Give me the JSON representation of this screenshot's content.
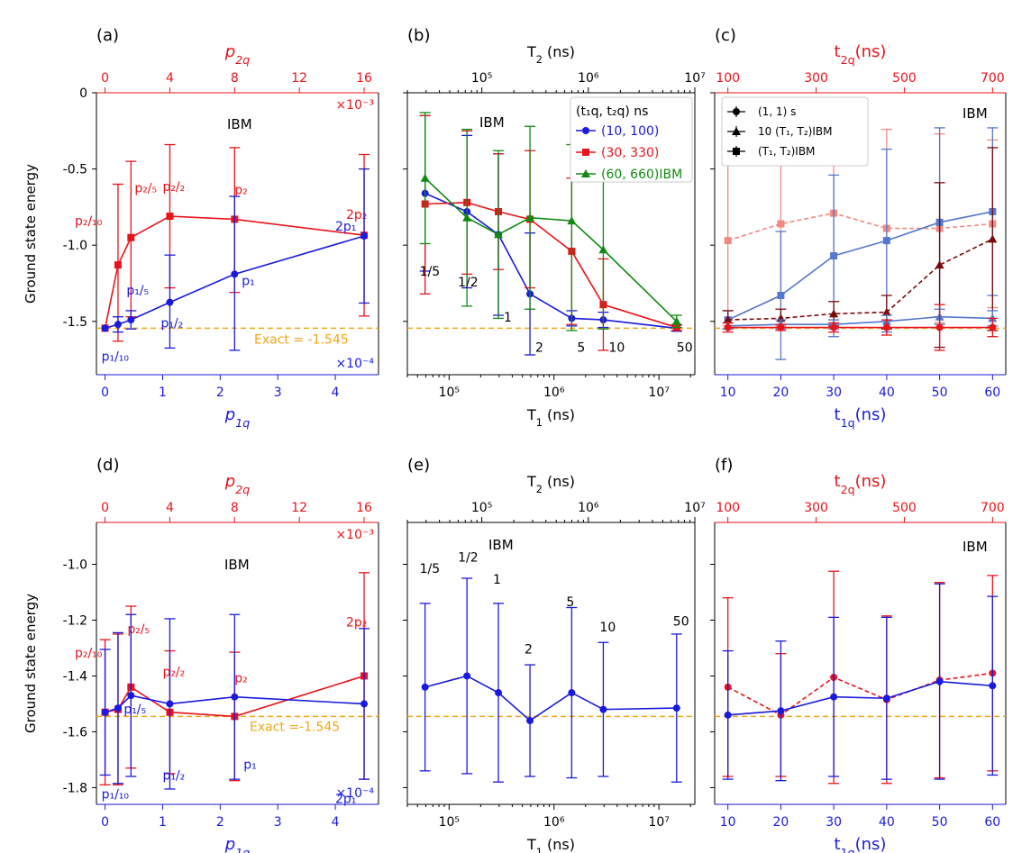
{
  "colors": {
    "blue": "#1a1adf",
    "red": "#e8141b",
    "green": "#118a11",
    "orange": "#f0a616",
    "darkred": "#7a0b0b",
    "salmon": "#f08a80",
    "steelblue": "#5577cc",
    "black": "#000000"
  },
  "chart_data": [
    {
      "panel": "(a)",
      "type": "line",
      "ylabel": "Ground state energy",
      "xlabel": "p1q",
      "xlabel_top": "p2q",
      "xlim": [
        -0.15,
        4.75
      ],
      "ylim": [
        -1.85,
        0.0
      ],
      "xticks": [
        0,
        1,
        2,
        3,
        4
      ],
      "xticks_top": [
        "0",
        "4",
        "8",
        "12",
        "16"
      ],
      "yticks": [
        0,
        -0.5,
        -1.0,
        -1.5
      ],
      "ytick_labels": [
        "0",
        "-0.5",
        "-1.0",
        "-1.5"
      ],
      "scale_top": "×10⁻³",
      "scale_bottom": "×10⁻⁴",
      "annotation": "IBM",
      "exact_label": "Exact = -1.545",
      "exact_value": -1.545,
      "series": [
        {
          "name": "red (p2q)",
          "color": "red",
          "marker": "square",
          "x": [
            0,
            0.225,
            0.45,
            1.125,
            2.25,
            4.5
          ],
          "y": [
            -1.545,
            -1.13,
            -0.95,
            -0.81,
            -0.83,
            -0.935
          ],
          "yerr": [
            [
              0,
              0
            ],
            [
              0.5,
              0.53
            ],
            [
              0.52,
              0.5
            ],
            [
              0.47,
              0.47
            ],
            [
              0.48,
              0.47
            ],
            [
              0.53,
              0.53
            ]
          ],
          "labels": [
            "",
            "p₂/₁₀",
            "p₂/₅",
            "p₂/₂",
            "p₂",
            "2p₂"
          ]
        },
        {
          "name": "blue (p1q)",
          "color": "blue",
          "marker": "circle",
          "x": [
            0,
            0.225,
            0.45,
            1.125,
            2.25,
            4.5
          ],
          "y": [
            -1.545,
            -1.52,
            -1.49,
            -1.375,
            -1.19,
            -0.94
          ],
          "yerr": [
            [
              0,
              0
            ],
            [
              0.05,
              0.05
            ],
            [
              0.06,
              0.06
            ],
            [
              0.3,
              0.31
            ],
            [
              0.5,
              0.51
            ],
            [
              0.44,
              0.44
            ]
          ],
          "labels": [
            "p₁/₁₀",
            "",
            "p₁/₅",
            "p₁/₂",
            "p₁",
            "2p₁"
          ]
        }
      ]
    },
    {
      "panel": "(b)",
      "type": "line",
      "xscale": "log",
      "xlabel": "T1 (ns)",
      "xlabel_top": "T2 (ns)",
      "xlim": [
        40000,
        22000000
      ],
      "xlim_top": [
        20000,
        10000000
      ],
      "ylim": [
        -1.85,
        0.0
      ],
      "xticks": [
        "10⁵",
        "10⁶",
        "10⁷"
      ],
      "xticks_top": [
        "10⁵",
        "10⁶",
        "10⁷"
      ],
      "annotation": "IBM",
      "legend_title": "(t₁q, t₂q) ns",
      "exact_value": -1.545,
      "multipliers": [
        "1/5",
        "1/2",
        "1",
        "2",
        "5",
        "10",
        "50"
      ],
      "series": [
        {
          "name": "(10, 100)",
          "color": "blue",
          "marker": "circle",
          "x": [
            59000,
            148000,
            295000,
            590000,
            1475000,
            2950000,
            14750000
          ],
          "y": [
            -0.66,
            -0.78,
            -0.93,
            -1.32,
            -1.48,
            -1.49,
            -1.545
          ],
          "yerr": [
            [
              0.51,
              0.51
            ],
            [
              0.5,
              0.5
            ],
            [
              0.53,
              0.53
            ],
            [
              0.4,
              0.4
            ],
            [
              0.05,
              0.05
            ],
            [
              0.05,
              0.05
            ],
            [
              0.02,
              0.02
            ]
          ]
        },
        {
          "name": "(30, 330)",
          "color": "red",
          "marker": "square",
          "x": [
            59000,
            148000,
            295000,
            590000,
            1475000,
            2950000,
            14750000
          ],
          "y": [
            -0.73,
            -0.72,
            -0.78,
            -0.83,
            -1.04,
            -1.39,
            -1.54
          ],
          "yerr": [
            [
              0.59,
              0.58
            ],
            [
              0.47,
              0.47
            ],
            [
              0.38,
              0.38
            ],
            [
              0.45,
              0.45
            ],
            [
              0.48,
              0.48
            ],
            [
              0.3,
              0.3
            ],
            [
              0.02,
              0.02
            ]
          ]
        },
        {
          "name": "(60, 660)IBM",
          "color": "green",
          "marker": "triangle",
          "x": [
            59000,
            148000,
            295000,
            590000,
            1475000,
            2950000,
            14750000
          ],
          "y": [
            -0.56,
            -0.82,
            -0.93,
            -0.82,
            -0.84,
            -1.03,
            -1.5
          ],
          "yerr": [
            [
              0.43,
              0.43
            ],
            [
              0.58,
              0.58
            ],
            [
              0.55,
              0.55
            ],
            [
              0.6,
              0.6
            ],
            [
              0.72,
              0.5
            ],
            [
              0.52,
              0.52
            ],
            [
              0.04,
              0.04
            ]
          ]
        }
      ]
    },
    {
      "panel": "(c)",
      "type": "line",
      "xlabel": "t1q(ns)",
      "xlabel_top": "t2q(ns)",
      "xlim": [
        7.5,
        62.5
      ],
      "ylim": [
        -1.85,
        0.0
      ],
      "xticks": [
        10,
        20,
        30,
        40,
        50,
        60
      ],
      "xticks_top": [
        "100",
        "300",
        "500",
        "700"
      ],
      "annotation": "IBM",
      "legend": [
        "(1, 1) s",
        "10 (T₁, T₂)IBM",
        "(T₁, T₂)IBM"
      ],
      "series": [
        {
          "name": "(T1, T2)IBM salmon",
          "color": "salmon",
          "marker": "square",
          "dashed": true,
          "x": [
            10,
            20,
            30,
            40,
            50,
            60
          ],
          "y": [
            -0.97,
            -0.86,
            -0.79,
            -0.89,
            -0.89,
            -0.86
          ],
          "yerr": [
            [
              0.56,
              0.56
            ],
            [
              0.67,
              0.67
            ],
            [
              0.7,
              0.7
            ],
            [
              0.65,
              0.65
            ],
            [
              0.62,
              0.62
            ],
            [
              0.55,
              0.55
            ]
          ]
        },
        {
          "name": "(T1, T2)IBM blue",
          "color": "steelblue",
          "marker": "square",
          "x": [
            10,
            20,
            30,
            40,
            50,
            60
          ],
          "y": [
            -1.49,
            -1.33,
            -1.07,
            -0.97,
            -0.85,
            -0.78
          ],
          "yerr": [
            [
              0.06,
              0.06
            ],
            [
              0.42,
              0.42
            ],
            [
              0.53,
              0.53
            ],
            [
              0.6,
              0.6
            ],
            [
              0.62,
              0.62
            ],
            [
              0.55,
              0.55
            ]
          ]
        },
        {
          "name": "10 (T1, T2)IBM dark",
          "color": "darkred",
          "marker": "triangle",
          "dashed": true,
          "x": [
            10,
            20,
            30,
            40,
            50,
            60
          ],
          "y": [
            -1.49,
            -1.48,
            -1.45,
            -1.44,
            -1.13,
            -0.96
          ],
          "yerr": [
            [
              0.06,
              0.06
            ],
            [
              0.06,
              0.06
            ],
            [
              0.08,
              0.08
            ],
            [
              0.11,
              0.11
            ],
            [
              0.54,
              0.54
            ],
            [
              0.6,
              0.6
            ]
          ]
        },
        {
          "name": "10 (T1, T2)IBM blue",
          "color": "steelblue",
          "marker": "triangle",
          "x": [
            10,
            20,
            30,
            40,
            50,
            60
          ],
          "y": [
            -1.53,
            -1.52,
            -1.52,
            -1.5,
            -1.47,
            -1.48
          ],
          "yerr": [
            [
              0.02,
              0.02
            ],
            [
              0.03,
              0.03
            ],
            [
              0.03,
              0.03
            ],
            [
              0.04,
              0.04
            ],
            [
              0.05,
              0.05
            ],
            [
              0.05,
              0.05
            ]
          ]
        },
        {
          "name": "(1, 1) s",
          "color": "red",
          "marker": "circle",
          "x": [
            10,
            20,
            30,
            40,
            50,
            60
          ],
          "y": [
            -1.54,
            -1.54,
            -1.54,
            -1.54,
            -1.54,
            -1.54
          ],
          "yerr": [
            [
              0.03,
              0.03
            ],
            [
              0.02,
              0.02
            ],
            [
              0.03,
              0.03
            ],
            [
              0.05,
              0.05
            ],
            [
              0.15,
              0.15
            ],
            [
              0.06,
              0.06
            ]
          ]
        }
      ]
    },
    {
      "panel": "(d)",
      "type": "line",
      "ylabel": "Ground state energy",
      "xlabel": "p1q",
      "xlabel_top": "p2q",
      "xlim": [
        -0.15,
        4.75
      ],
      "ylim": [
        -1.86,
        -0.85
      ],
      "xticks": [
        0,
        1,
        2,
        3,
        4
      ],
      "xticks_top": [
        "0",
        "4",
        "8",
        "12",
        "16"
      ],
      "yticks": [
        -1.0,
        -1.2,
        -1.4,
        -1.6,
        -1.8
      ],
      "ytick_labels": [
        "-1.0",
        "-1.2",
        "-1.4",
        "-1.6",
        "-1.8"
      ],
      "scale_top": "×10⁻³",
      "scale_bottom": "×10⁻⁴",
      "annotation": "IBM",
      "exact_label": "Exact =-1.545",
      "exact_value": -1.545,
      "series": [
        {
          "name": "red (p2q)",
          "color": "red",
          "marker": "square",
          "x": [
            0,
            0.225,
            0.45,
            1.125,
            2.25,
            4.5
          ],
          "y": [
            -1.53,
            -1.52,
            -1.44,
            -1.53,
            -1.545,
            -1.4
          ],
          "yerr": [
            [
              0.26,
              0.26
            ],
            [
              0.27,
              0.27
            ],
            [
              0.29,
              0.29
            ],
            [
              0.22,
              0.22
            ],
            [
              0.23,
              0.23
            ],
            [
              0.37,
              0.37
            ]
          ],
          "labels": [
            "",
            "p₂/₁₀",
            "p₂/₅",
            "p₂/₂",
            "p₂",
            "2p₂"
          ]
        },
        {
          "name": "blue (p1q)",
          "color": "blue",
          "marker": "circle",
          "x": [
            0,
            0.225,
            0.45,
            1.125,
            2.25,
            4.5
          ],
          "y": [
            -1.53,
            -1.515,
            -1.47,
            -1.5,
            -1.475,
            -1.5
          ],
          "yerr": [
            [
              0.225,
              0.225
            ],
            [
              0.27,
              0.27
            ],
            [
              0.29,
              0.29
            ],
            [
              0.305,
              0.305
            ],
            [
              0.295,
              0.295
            ],
            [
              0.27,
              0.27
            ]
          ],
          "labels": [
            "p₁/₁₀",
            "",
            "p₁/₅",
            "p₁/₂",
            "p₁",
            "2p₁"
          ]
        }
      ]
    },
    {
      "panel": "(e)",
      "type": "line",
      "xscale": "log",
      "xlabel": "T1 (ns)",
      "xlabel_top": "T2 (ns)",
      "xlim": [
        40000,
        22000000
      ],
      "xlim_top": [
        20000,
        10000000
      ],
      "ylim": [
        -1.86,
        -0.85
      ],
      "xticks": [
        "10⁵",
        "10⁶",
        "10⁷"
      ],
      "xticks_top": [
        "10⁵",
        "10⁶",
        "10⁷"
      ],
      "annotation": "IBM",
      "exact_value": -1.545,
      "multipliers": [
        "1/5",
        "1/2",
        "1",
        "2",
        "5",
        "10",
        "50"
      ],
      "series": [
        {
          "name": "blue",
          "color": "blue",
          "marker": "circle",
          "x": [
            59000,
            148000,
            295000,
            590000,
            1475000,
            2950000,
            14750000
          ],
          "y": [
            -1.44,
            -1.4,
            -1.46,
            -1.56,
            -1.46,
            -1.52,
            -1.515
          ],
          "yerr": [
            [
              0.3,
              0.3
            ],
            [
              0.35,
              0.35
            ],
            [
              0.32,
              0.32
            ],
            [
              0.2,
              0.2
            ],
            [
              0.305,
              0.305
            ],
            [
              0.24,
              0.24
            ],
            [
              0.265,
              0.265
            ]
          ]
        }
      ]
    },
    {
      "panel": "(f)",
      "type": "line",
      "xlabel": "t1q(ns)",
      "xlabel_top": "t2q(ns)",
      "xlim": [
        7.5,
        62.5
      ],
      "ylim": [
        -1.86,
        -0.85
      ],
      "xticks": [
        10,
        20,
        30,
        40,
        50,
        60
      ],
      "xticks_top": [
        "100",
        "300",
        "500",
        "700"
      ],
      "annotation": "IBM",
      "exact_value": -1.545,
      "series": [
        {
          "name": "red dashed",
          "color": "red",
          "marker": "circle",
          "dashed": true,
          "x": [
            10,
            20,
            30,
            40,
            50,
            60
          ],
          "y": [
            -1.44,
            -1.54,
            -1.405,
            -1.485,
            -1.415,
            -1.39
          ],
          "yerr": [
            [
              0.32,
              0.32
            ],
            [
              0.22,
              0.22
            ],
            [
              0.38,
              0.38
            ],
            [
              0.3,
              0.3
            ],
            [
              0.35,
              0.35
            ],
            [
              0.35,
              0.35
            ]
          ]
        },
        {
          "name": "blue",
          "color": "blue",
          "marker": "circle",
          "x": [
            10,
            20,
            30,
            40,
            50,
            60
          ],
          "y": [
            -1.54,
            -1.525,
            -1.475,
            -1.48,
            -1.42,
            -1.435
          ],
          "yerr": [
            [
              0.23,
              0.23
            ],
            [
              0.25,
              0.25
            ],
            [
              0.285,
              0.285
            ],
            [
              0.29,
              0.29
            ],
            [
              0.35,
              0.35
            ],
            [
              0.32,
              0.32
            ]
          ]
        }
      ]
    }
  ]
}
